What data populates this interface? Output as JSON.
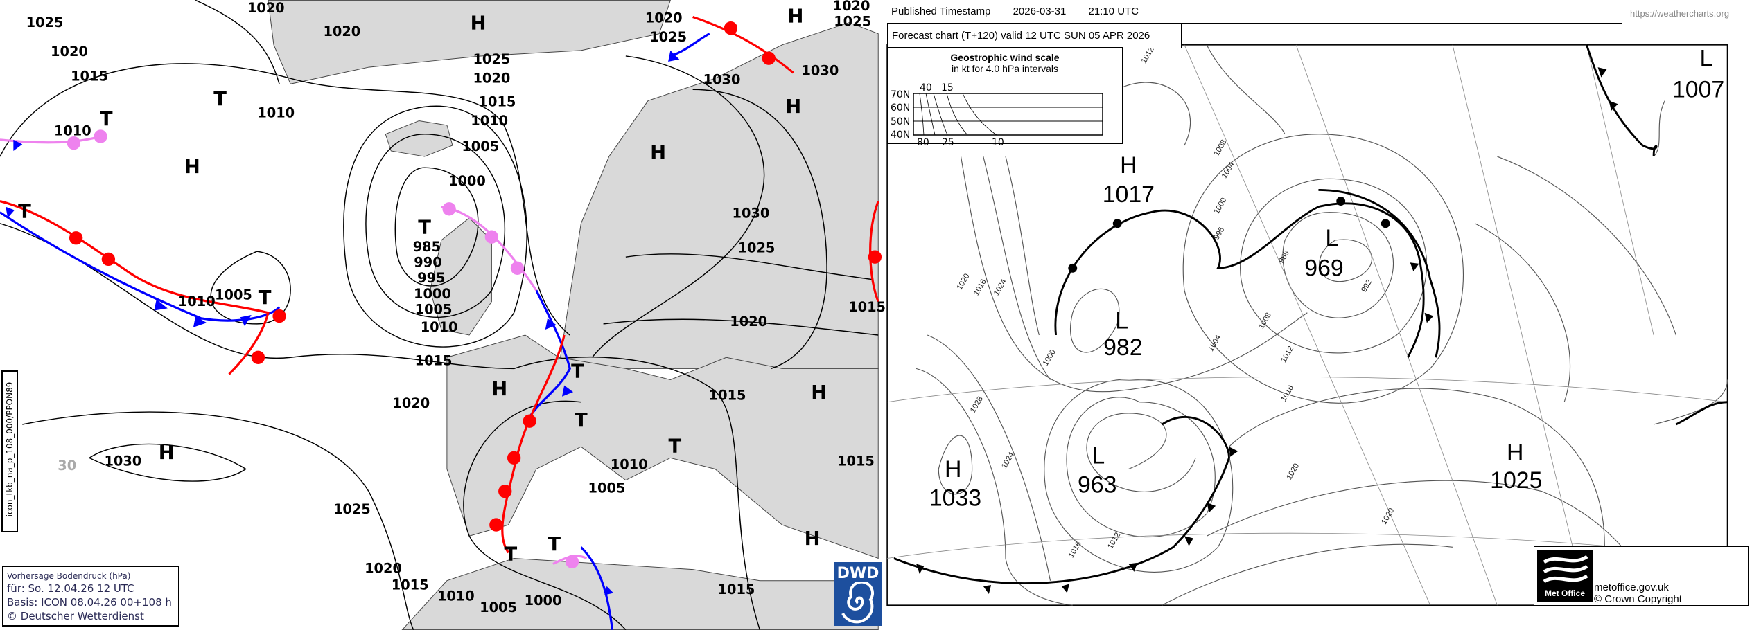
{
  "dwd": {
    "legend": {
      "title": "Vorhersage Bodendruck (hPa)",
      "valid": "für:  So. 12.04.26  12 UTC",
      "basis": "Basis: ICON  08.04.26 00+108 h",
      "copyright": "© Deutscher Wetterdienst"
    },
    "side_label": "icon_tkb_na_p_108_000/PPON89",
    "logo_text": "DWD",
    "labels": [
      "1025",
      "1020",
      "1020",
      "H",
      "1020",
      "1015",
      "1010",
      "T",
      "T",
      "1010",
      "H",
      "1025",
      "1020",
      "1015",
      "1010",
      "1005",
      "1000",
      "T",
      "985",
      "990",
      "995",
      "1000",
      "1005",
      "1010",
      "1015",
      "1020",
      "H",
      "T",
      "T",
      "T",
      "1010",
      "1005",
      "1015",
      "H",
      "1015",
      "1015",
      "1020",
      "1025",
      "1030",
      "H",
      "H",
      "1030",
      "1030",
      "H",
      "1020",
      "1025",
      "1020",
      "1025",
      "1010",
      "1005",
      "T",
      "H",
      "1030",
      "30",
      "1025",
      "H",
      "T",
      "T",
      "1020",
      "1015",
      "1010",
      "1005",
      "1000",
      "1015",
      "T"
    ],
    "colors": {
      "land": "#d9d9d9",
      "sea": "#ffffff",
      "cold_front": "#0000ff",
      "warm_front": "#ff0000",
      "occlusion": "#ee82ee",
      "logo": "#1d4f9e"
    }
  },
  "metoffice": {
    "published_label": "Published Timestamp",
    "published_date": "2026-03-31",
    "published_time": "21:10  UTC",
    "url": "https://weathercharts.org",
    "forecast_title": "Forecast chart (T+120) valid 12 UTC SUN 05  APR 2026",
    "wind_scale": {
      "title": "Geostrophic wind scale",
      "subtitle": "in kt for 4.0 hPa intervals",
      "lat_labels": [
        "70N",
        "60N",
        "50N",
        "40N"
      ],
      "top_labels": [
        "40",
        "15"
      ],
      "bottom_labels": [
        "80",
        "25",
        "10"
      ]
    },
    "centres": [
      "H",
      "1017",
      "L",
      "969",
      "L",
      "982",
      "L",
      "963",
      "H",
      "1033",
      "H",
      "1025",
      "L",
      "1007"
    ],
    "isobar_labels": [
      "1012",
      "1008",
      "1004",
      "1000",
      "996",
      "992",
      "988",
      "1016",
      "1020",
      "1024",
      "1028",
      "1000",
      "1004",
      "1008",
      "1012",
      "1016",
      "1020",
      "1024",
      "1020",
      "1012",
      "1016"
    ],
    "logo_name": "Met Office",
    "site": "metoffice.gov.uk",
    "copyright": "© Crown Copyright"
  }
}
